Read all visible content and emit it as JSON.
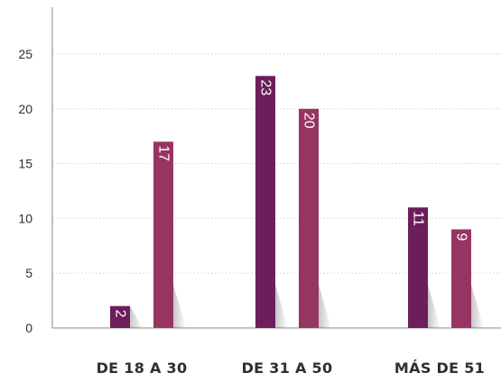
{
  "chart_data": {
    "type": "bar",
    "categories": [
      "DE 18 A 30",
      "DE 31 A 50",
      "MÁS DE 51"
    ],
    "series": [
      {
        "color": "#6b1e5b",
        "values": [
          2,
          23,
          11
        ]
      },
      {
        "color": "#973562",
        "values": [
          17,
          20,
          9
        ]
      }
    ],
    "yticks": [
      "0",
      "5",
      "10",
      "15",
      "20",
      "25"
    ],
    "ylim": [
      0,
      30
    ],
    "grid": true,
    "title": "",
    "xlabel": "",
    "ylabel": ""
  }
}
